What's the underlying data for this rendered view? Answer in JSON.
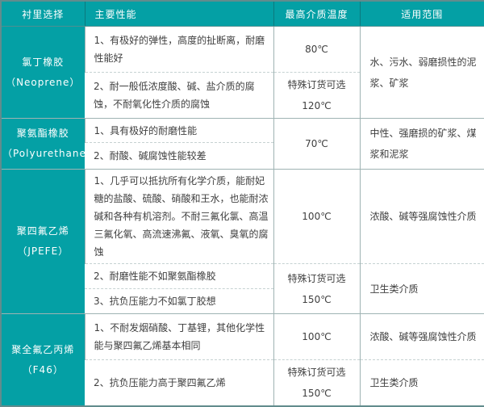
{
  "table": {
    "headers": [
      "衬里选择",
      "主要性能",
      "最高介质温度",
      "适用范围"
    ],
    "rows": [
      {
        "material": "氯丁橡胶",
        "material_en": "（Neoprene）",
        "items": [
          {
            "performance": "1、有极好的弹性，高度的扯断离，耐磨性能好",
            "temperature": "80℃"
          },
          {
            "performance": "2、耐一般低浓度酸、碱、盐介质的腐蚀，不耐氧化性介质的腐蚀",
            "temperature": "特殊订货可选\n120℃"
          }
        ],
        "application": "水、污水、弱磨损性的泥浆、矿浆"
      },
      {
        "material": "聚氨酯橡胶",
        "material_en": "（Polyurethane）",
        "items": [
          {
            "performance": "1、具有极好的耐磨性能"
          },
          {
            "performance": "2、耐酸、碱腐蚀性能较差"
          }
        ],
        "temperature_shared": "70℃",
        "application": "中性、强磨损的矿浆、煤浆和泥浆"
      },
      {
        "material": "聚四氟乙烯",
        "material_en": "（JPEFE）",
        "items": [
          {
            "performance": "1、几乎可以抵抗所有化学介质，能耐妃糖的盐酸、硫酸、硝酸和王水，也能耐浓碱和各种有机溶剂。不耐三氟化氯、高温三氟化氧、高流速沸氟、液氧、臭氧的腐蚀",
            "temperature": "100℃",
            "application": "浓酸、碱等强腐蚀性介质"
          },
          {
            "performance": "2、耐磨性能不如聚氨酯橡胶",
            "temperature": "特殊订货可选\n150℃",
            "application": "卫生类介质"
          },
          {
            "performance": "3、抗负压能力不如氯丁胶想"
          }
        ]
      },
      {
        "material": "聚全氟乙丙烯",
        "material_en": "（F46）",
        "items": [
          {
            "performance": "1、不耐发烟硝酸、丁基锂，其他化学性能与聚四氟乙烯基本相同",
            "temperature": "100℃",
            "application": "浓酸、碱等强腐蚀性介质"
          },
          {
            "performance": "2、抗负压能力高于聚四氟乙烯",
            "temperature": "特殊订货可选\n150℃",
            "application": "卫生类介质"
          }
        ]
      }
    ]
  },
  "colors": {
    "header_teal": "#04a0a5",
    "outer_border": "#628c8d",
    "grid_line": "#9fb3b3",
    "dashed_line": "#c6d2d2",
    "text": "#3f3f3f"
  }
}
